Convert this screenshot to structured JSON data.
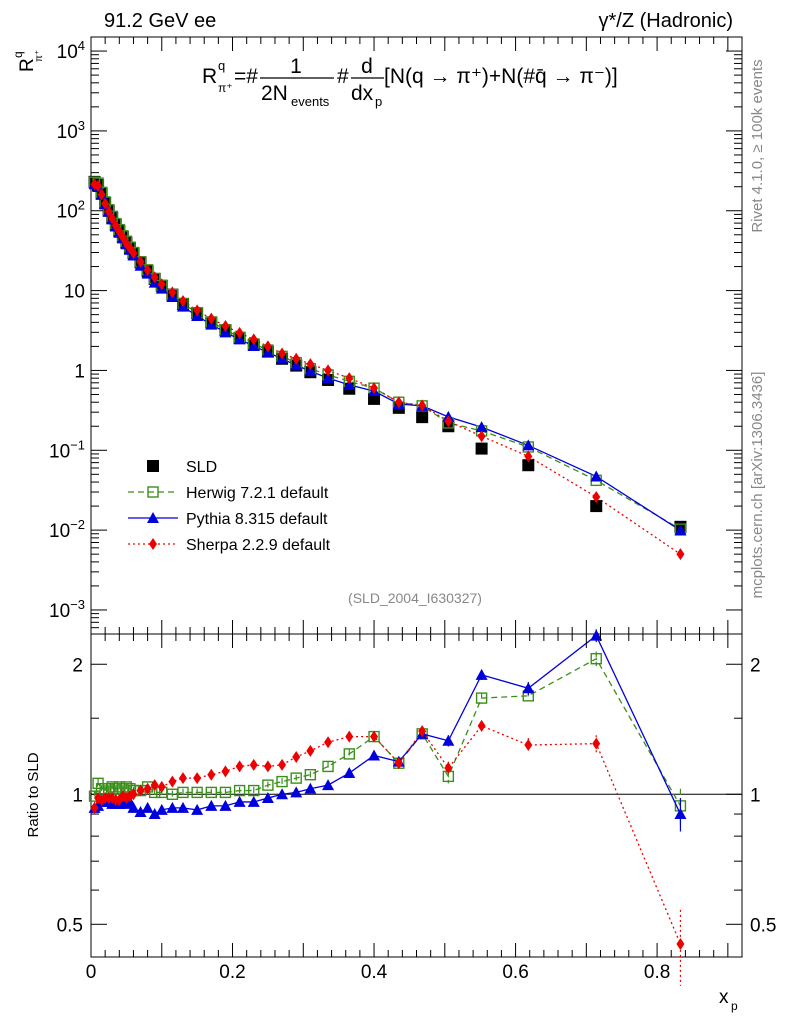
{
  "header": {
    "left": "91.2 GeV ee",
    "right": "γ*/Z (Hadronic)"
  },
  "side_text": {
    "rivet": "Rivet 4.1.0, ≥ 100k events",
    "mcplots": "mcplots.cern.ch [arXiv:1306.3436]"
  },
  "analysis_id": "(SLD_2004_I630327)",
  "formula": {
    "lhs": "R",
    "lhs_sup": "q",
    "lhs_sub": "π⁺",
    "eq": "=#",
    "numerator": "1",
    "denominator": "2N",
    "denominator_sub": "events",
    "hash": "#",
    "d_num": "d",
    "d_den": "dx",
    "d_den_sub": "p",
    "rhs": "[N(q → π⁺)+N(#q̄ → π⁻)]"
  },
  "colors": {
    "sld": "#000000",
    "herwig": "#3a8f1a",
    "pythia": "#0000dd",
    "sherpa": "#ee0000"
  },
  "chart_data": [
    {
      "type": "scatter",
      "name": "main",
      "yscale": "log",
      "ylabel": "R^q_π⁺",
      "xlim": [
        0,
        0.92
      ],
      "ylim": [
        0.0005,
        15000
      ],
      "yticks": [
        0.001,
        0.01,
        0.1,
        1,
        10,
        100,
        1000,
        10000
      ],
      "ytick_labels": [
        "10^-3",
        "10^-2",
        "10^-1",
        "1",
        "10",
        "10^2",
        "10^3",
        "10^4"
      ],
      "legend": [
        "SLD",
        "Herwig 7.2.1 default",
        "Pythia 8.315 default",
        "Sherpa 2.2.9 default"
      ],
      "legend_position": "bottom-left",
      "series": [
        {
          "name": "SLD",
          "style": "marker",
          "x": [
            0.005,
            0.01,
            0.015,
            0.02,
            0.025,
            0.03,
            0.035,
            0.04,
            0.045,
            0.05,
            0.055,
            0.06,
            0.07,
            0.08,
            0.09,
            0.1,
            0.115,
            0.13,
            0.15,
            0.17,
            0.19,
            0.21,
            0.23,
            0.25,
            0.27,
            0.29,
            0.31,
            0.335,
            0.365,
            0.4,
            0.435,
            0.468,
            0.505,
            0.552,
            0.618,
            0.714,
            0.833
          ],
          "y": [
            230,
            210,
            165,
            125,
            100,
            82,
            67,
            56,
            47,
            40,
            34,
            29.5,
            22.5,
            17.5,
            14,
            11.5,
            8.9,
            6.8,
            5.2,
            4.0,
            3.2,
            2.55,
            2.1,
            1.72,
            1.4,
            1.15,
            0.95,
            0.76,
            0.59,
            0.44,
            0.34,
            0.26,
            0.2,
            0.105,
            0.065,
            0.02,
            0.011
          ]
        },
        {
          "name": "Herwig 7.2.1 default",
          "style": "dashed-open-square",
          "x": [
            0.005,
            0.01,
            0.015,
            0.02,
            0.025,
            0.03,
            0.035,
            0.04,
            0.045,
            0.05,
            0.055,
            0.06,
            0.07,
            0.08,
            0.09,
            0.1,
            0.115,
            0.13,
            0.15,
            0.17,
            0.19,
            0.21,
            0.23,
            0.25,
            0.27,
            0.29,
            0.31,
            0.335,
            0.365,
            0.4,
            0.435,
            0.468,
            0.505,
            0.552,
            0.618,
            0.714,
            0.833
          ],
          "y": [
            228,
            222,
            170,
            129,
            103,
            85,
            69,
            58,
            48.5,
            41.5,
            35,
            30,
            23,
            18.2,
            14.2,
            11.6,
            8.9,
            6.9,
            5.25,
            4.03,
            3.23,
            2.6,
            2.15,
            1.8,
            1.5,
            1.25,
            1.05,
            0.88,
            0.73,
            0.6,
            0.4,
            0.36,
            0.22,
            0.175,
            0.11,
            0.042,
            0.0103
          ]
        },
        {
          "name": "Pythia 8.315 default",
          "style": "solid-filled-triangle",
          "x": [
            0.005,
            0.01,
            0.015,
            0.02,
            0.025,
            0.03,
            0.035,
            0.04,
            0.045,
            0.05,
            0.055,
            0.06,
            0.07,
            0.08,
            0.09,
            0.1,
            0.115,
            0.13,
            0.15,
            0.17,
            0.19,
            0.21,
            0.23,
            0.25,
            0.27,
            0.29,
            0.31,
            0.335,
            0.365,
            0.4,
            0.435,
            0.468,
            0.505,
            0.552,
            0.618,
            0.714,
            0.833
          ],
          "y": [
            215,
            198,
            158,
            120,
            97,
            78,
            63.5,
            53,
            45,
            38,
            32.5,
            27.5,
            20.5,
            16.3,
            12.6,
            10.6,
            8.3,
            6.3,
            4.8,
            3.75,
            3.0,
            2.45,
            2.02,
            1.68,
            1.4,
            1.16,
            0.98,
            0.8,
            0.66,
            0.55,
            0.38,
            0.36,
            0.262,
            0.195,
            0.115,
            0.047,
            0.0099
          ]
        },
        {
          "name": "Sherpa 2.2.9 default",
          "style": "dotted-filled-diamond",
          "x": [
            0.005,
            0.01,
            0.015,
            0.02,
            0.025,
            0.03,
            0.035,
            0.04,
            0.045,
            0.05,
            0.055,
            0.06,
            0.07,
            0.08,
            0.09,
            0.1,
            0.115,
            0.13,
            0.15,
            0.17,
            0.19,
            0.21,
            0.23,
            0.25,
            0.27,
            0.29,
            0.31,
            0.335,
            0.365,
            0.4,
            0.435,
            0.468,
            0.505,
            0.552,
            0.618,
            0.714,
            0.833
          ],
          "y": [
            215,
            205,
            160,
            123,
            98,
            80,
            65,
            54.5,
            46.5,
            39,
            34,
            29.5,
            23,
            18,
            14.7,
            12,
            9.5,
            7.4,
            5.65,
            4.45,
            3.6,
            2.95,
            2.45,
            2.0,
            1.63,
            1.4,
            1.2,
            1.0,
            0.8,
            0.6,
            0.4,
            0.365,
            0.23,
            0.15,
            0.084,
            0.026,
            0.005
          ]
        }
      ]
    },
    {
      "type": "line",
      "name": "ratio",
      "yscale": "log",
      "ylabel": "Ratio to SLD",
      "xlabel": "x_p",
      "xlim": [
        0,
        0.92
      ],
      "ylim": [
        0.42,
        2.35
      ],
      "yticks": [
        0.5,
        1,
        2
      ],
      "ytick_labels": [
        "0.5",
        "1",
        "2"
      ],
      "xticks": [
        0,
        0.2,
        0.4,
        0.6,
        0.8
      ],
      "xtick_labels": [
        "0",
        "0.2",
        "0.4",
        "0.6",
        "0.8"
      ],
      "reference_line": 1,
      "series": [
        {
          "name": "Herwig 7.2.1 default",
          "x": [
            0.005,
            0.01,
            0.015,
            0.02,
            0.025,
            0.03,
            0.035,
            0.04,
            0.045,
            0.05,
            0.055,
            0.06,
            0.07,
            0.08,
            0.09,
            0.1,
            0.115,
            0.13,
            0.15,
            0.17,
            0.19,
            0.21,
            0.23,
            0.25,
            0.27,
            0.29,
            0.31,
            0.335,
            0.365,
            0.4,
            0.435,
            0.468,
            0.505,
            0.552,
            0.618,
            0.714,
            0.833
          ],
          "y": [
            0.99,
            1.06,
            1.03,
            1.03,
            1.03,
            1.04,
            1.03,
            1.04,
            1.03,
            1.04,
            1.03,
            1.02,
            1.02,
            1.04,
            1.01,
            1.01,
            1.0,
            1.01,
            1.01,
            1.01,
            1.01,
            1.02,
            1.02,
            1.05,
            1.07,
            1.09,
            1.11,
            1.16,
            1.24,
            1.36,
            1.18,
            1.38,
            1.1,
            1.67,
            1.69,
            2.06,
            0.94
          ],
          "err": [
            0.03,
            0.03,
            0.02,
            0.02,
            0.02,
            0.02,
            0.02,
            0.02,
            0.02,
            0.02,
            0.02,
            0.02,
            0.02,
            0.02,
            0.02,
            0.02,
            0.02,
            0.02,
            0.02,
            0.02,
            0.02,
            0.02,
            0.02,
            0.02,
            0.02,
            0.02,
            0.02,
            0.03,
            0.03,
            0.03,
            0.03,
            0.04,
            0.04,
            0.05,
            0.05,
            0.08,
            0.09
          ]
        },
        {
          "name": "Pythia 8.315 default",
          "x": [
            0.005,
            0.01,
            0.015,
            0.02,
            0.025,
            0.03,
            0.035,
            0.04,
            0.045,
            0.05,
            0.055,
            0.06,
            0.07,
            0.08,
            0.09,
            0.1,
            0.115,
            0.13,
            0.15,
            0.17,
            0.19,
            0.21,
            0.23,
            0.25,
            0.27,
            0.29,
            0.31,
            0.335,
            0.365,
            0.4,
            0.435,
            0.468,
            0.505,
            0.552,
            0.618,
            0.714,
            0.833
          ],
          "y": [
            0.93,
            0.94,
            0.96,
            0.96,
            0.97,
            0.95,
            0.95,
            0.95,
            0.96,
            0.95,
            0.96,
            0.93,
            0.91,
            0.93,
            0.9,
            0.92,
            0.93,
            0.93,
            0.92,
            0.94,
            0.94,
            0.96,
            0.96,
            0.98,
            1.0,
            1.01,
            1.03,
            1.05,
            1.12,
            1.23,
            1.19,
            1.38,
            1.33,
            1.89,
            1.76,
            2.33,
            0.9
          ],
          "err": [
            0.02,
            0.02,
            0.02,
            0.02,
            0.02,
            0.02,
            0.02,
            0.02,
            0.02,
            0.02,
            0.02,
            0.02,
            0.02,
            0.02,
            0.02,
            0.02,
            0.02,
            0.02,
            0.02,
            0.02,
            0.02,
            0.02,
            0.02,
            0.02,
            0.02,
            0.02,
            0.02,
            0.02,
            0.03,
            0.03,
            0.03,
            0.03,
            0.04,
            0.05,
            0.06,
            0.08,
            0.08
          ]
        },
        {
          "name": "Sherpa 2.2.9 default",
          "x": [
            0.005,
            0.01,
            0.015,
            0.02,
            0.025,
            0.03,
            0.035,
            0.04,
            0.045,
            0.05,
            0.055,
            0.06,
            0.07,
            0.08,
            0.09,
            0.1,
            0.115,
            0.13,
            0.15,
            0.17,
            0.19,
            0.21,
            0.23,
            0.25,
            0.27,
            0.29,
            0.31,
            0.335,
            0.365,
            0.4,
            0.435,
            0.468,
            0.505,
            0.552,
            0.618,
            0.714,
            0.833
          ],
          "y": [
            0.93,
            0.98,
            0.97,
            0.98,
            0.98,
            0.98,
            0.97,
            0.97,
            0.99,
            0.98,
            0.99,
            1.0,
            1.02,
            1.03,
            1.05,
            1.04,
            1.07,
            1.09,
            1.09,
            1.11,
            1.13,
            1.16,
            1.17,
            1.16,
            1.17,
            1.22,
            1.26,
            1.32,
            1.36,
            1.36,
            1.18,
            1.4,
            1.15,
            1.44,
            1.3,
            1.31,
            0.45
          ],
          "err": [
            0.02,
            0.02,
            0.02,
            0.02,
            0.02,
            0.02,
            0.02,
            0.02,
            0.02,
            0.02,
            0.02,
            0.02,
            0.02,
            0.02,
            0.02,
            0.02,
            0.02,
            0.02,
            0.02,
            0.02,
            0.02,
            0.02,
            0.02,
            0.02,
            0.02,
            0.02,
            0.02,
            0.02,
            0.03,
            0.03,
            0.03,
            0.03,
            0.04,
            0.04,
            0.05,
            0.06,
            0.09
          ]
        }
      ]
    }
  ]
}
